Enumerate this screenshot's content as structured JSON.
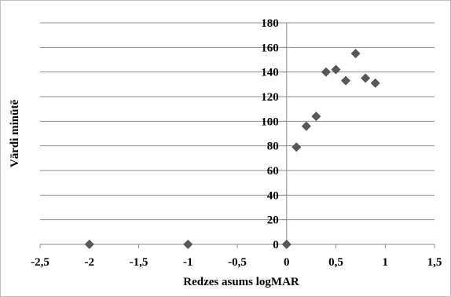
{
  "chart_data": {
    "type": "scatter",
    "xlabel": "Redzes asums logMAR",
    "ylabel": "Vārdi minūtē",
    "xlim": [
      -2.5,
      1.5
    ],
    "ylim": [
      0,
      180
    ],
    "x_ticks": [
      -2.5,
      -2,
      -1.5,
      -1,
      -0.5,
      0,
      0.5,
      1,
      1.5
    ],
    "x_tick_labels": [
      "-2,5",
      "-2",
      "-1,5",
      "-1",
      "-0,5",
      "0",
      "0,5",
      "1",
      "1,5"
    ],
    "y_ticks": [
      0,
      20,
      40,
      60,
      80,
      100,
      120,
      140,
      160,
      180
    ],
    "y_tick_labels": [
      "0",
      "20",
      "40",
      "60",
      "80",
      "100",
      "120",
      "140",
      "160",
      "180"
    ],
    "grid": "horizontal",
    "legend": "none",
    "marker": "diamond",
    "marker_color": "#595959",
    "series": [
      {
        "points": [
          {
            "x": -2.0,
            "y": 0
          },
          {
            "x": -1.0,
            "y": 0
          },
          {
            "x": 0.0,
            "y": 0
          },
          {
            "x": 0.1,
            "y": 79
          },
          {
            "x": 0.2,
            "y": 96
          },
          {
            "x": 0.3,
            "y": 104
          },
          {
            "x": 0.4,
            "y": 140
          },
          {
            "x": 0.5,
            "y": 142
          },
          {
            "x": 0.6,
            "y": 133
          },
          {
            "x": 0.7,
            "y": 155
          },
          {
            "x": 0.8,
            "y": 135
          },
          {
            "x": 0.9,
            "y": 131
          }
        ]
      }
    ]
  }
}
